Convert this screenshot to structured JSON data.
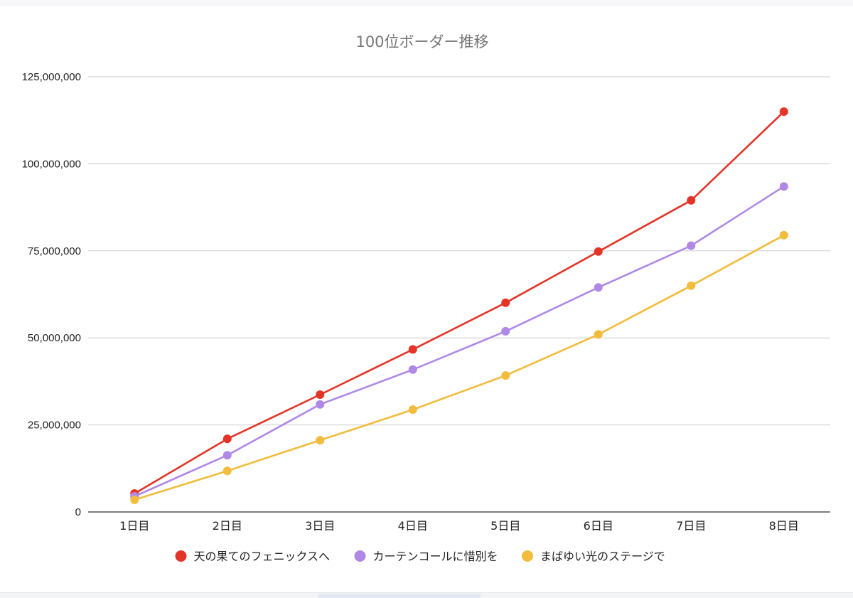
{
  "chart_data": {
    "type": "line",
    "title": "100位ボーダー推移",
    "xlabel": "",
    "ylabel": "",
    "categories": [
      "1日目",
      "2日目",
      "3日目",
      "4日目",
      "5日目",
      "6日目",
      "7日目",
      "8日目"
    ],
    "ylim": [
      0,
      125000000
    ],
    "yticks": [
      0,
      25000000,
      50000000,
      75000000,
      100000000,
      125000000
    ],
    "ytick_labels": [
      "0",
      "25,000,000",
      "50,000,000",
      "75,000,000",
      "100,000,000",
      "125,000,000"
    ],
    "grid": true,
    "legend_position": "bottom",
    "series": [
      {
        "name": "天の果てのフェニックスへ",
        "color": "#e33427",
        "values": [
          5300000,
          21000000,
          33700000,
          46700000,
          60100000,
          74800000,
          89500000,
          115000000
        ]
      },
      {
        "name": "カーテンコールに惜別を",
        "color": "#b088e6",
        "values": [
          4500000,
          16300000,
          30900000,
          40900000,
          51900000,
          64500000,
          76500000,
          93500000
        ]
      },
      {
        "name": "まばゆい光のステージで",
        "color": "#f2bc3c",
        "values": [
          3500000,
          11800000,
          20600000,
          29400000,
          39200000,
          51000000,
          65000000,
          79500000
        ]
      }
    ]
  }
}
